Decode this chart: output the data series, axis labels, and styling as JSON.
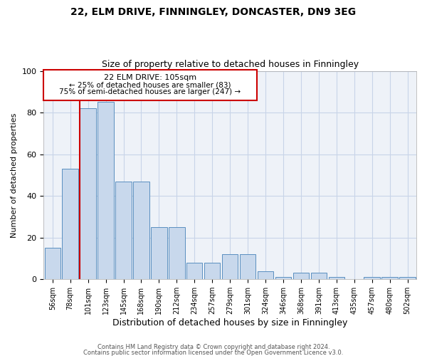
{
  "title": "22, ELM DRIVE, FINNINGLEY, DONCASTER, DN9 3EG",
  "subtitle": "Size of property relative to detached houses in Finningley",
  "xlabel": "Distribution of detached houses by size in Finningley",
  "ylabel": "Number of detached properties",
  "categories": [
    "56sqm",
    "78sqm",
    "101sqm",
    "123sqm",
    "145sqm",
    "168sqm",
    "190sqm",
    "212sqm",
    "234sqm",
    "257sqm",
    "279sqm",
    "301sqm",
    "324sqm",
    "346sqm",
    "368sqm",
    "391sqm",
    "413sqm",
    "435sqm",
    "457sqm",
    "480sqm",
    "502sqm"
  ],
  "values": [
    15,
    53,
    82,
    85,
    47,
    47,
    25,
    25,
    8,
    8,
    12,
    12,
    4,
    1,
    3,
    3,
    1,
    0,
    1,
    1,
    1
  ],
  "bar_color": "#c8d8ec",
  "bar_edge_color": "#5a8fc0",
  "grid_color": "#c8d4e8",
  "background_color": "#eef2f8",
  "annotation_box_color": "#ffffff",
  "annotation_border_color": "#cc0000",
  "property_line_color": "#cc0000",
  "annotation_line1": "22 ELM DRIVE: 105sqm",
  "annotation_line2": "← 25% of detached houses are smaller (83)",
  "annotation_line3": "75% of semi-detached houses are larger (247) →",
  "footnote1": "Contains HM Land Registry data © Crown copyright and database right 2024.",
  "footnote2": "Contains public sector information licensed under the Open Government Licence v3.0.",
  "ylim": [
    0,
    100
  ],
  "title_fontsize": 10,
  "subtitle_fontsize": 9,
  "annotation_fontsize": 8,
  "xlabel_fontsize": 9,
  "ylabel_fontsize": 8
}
